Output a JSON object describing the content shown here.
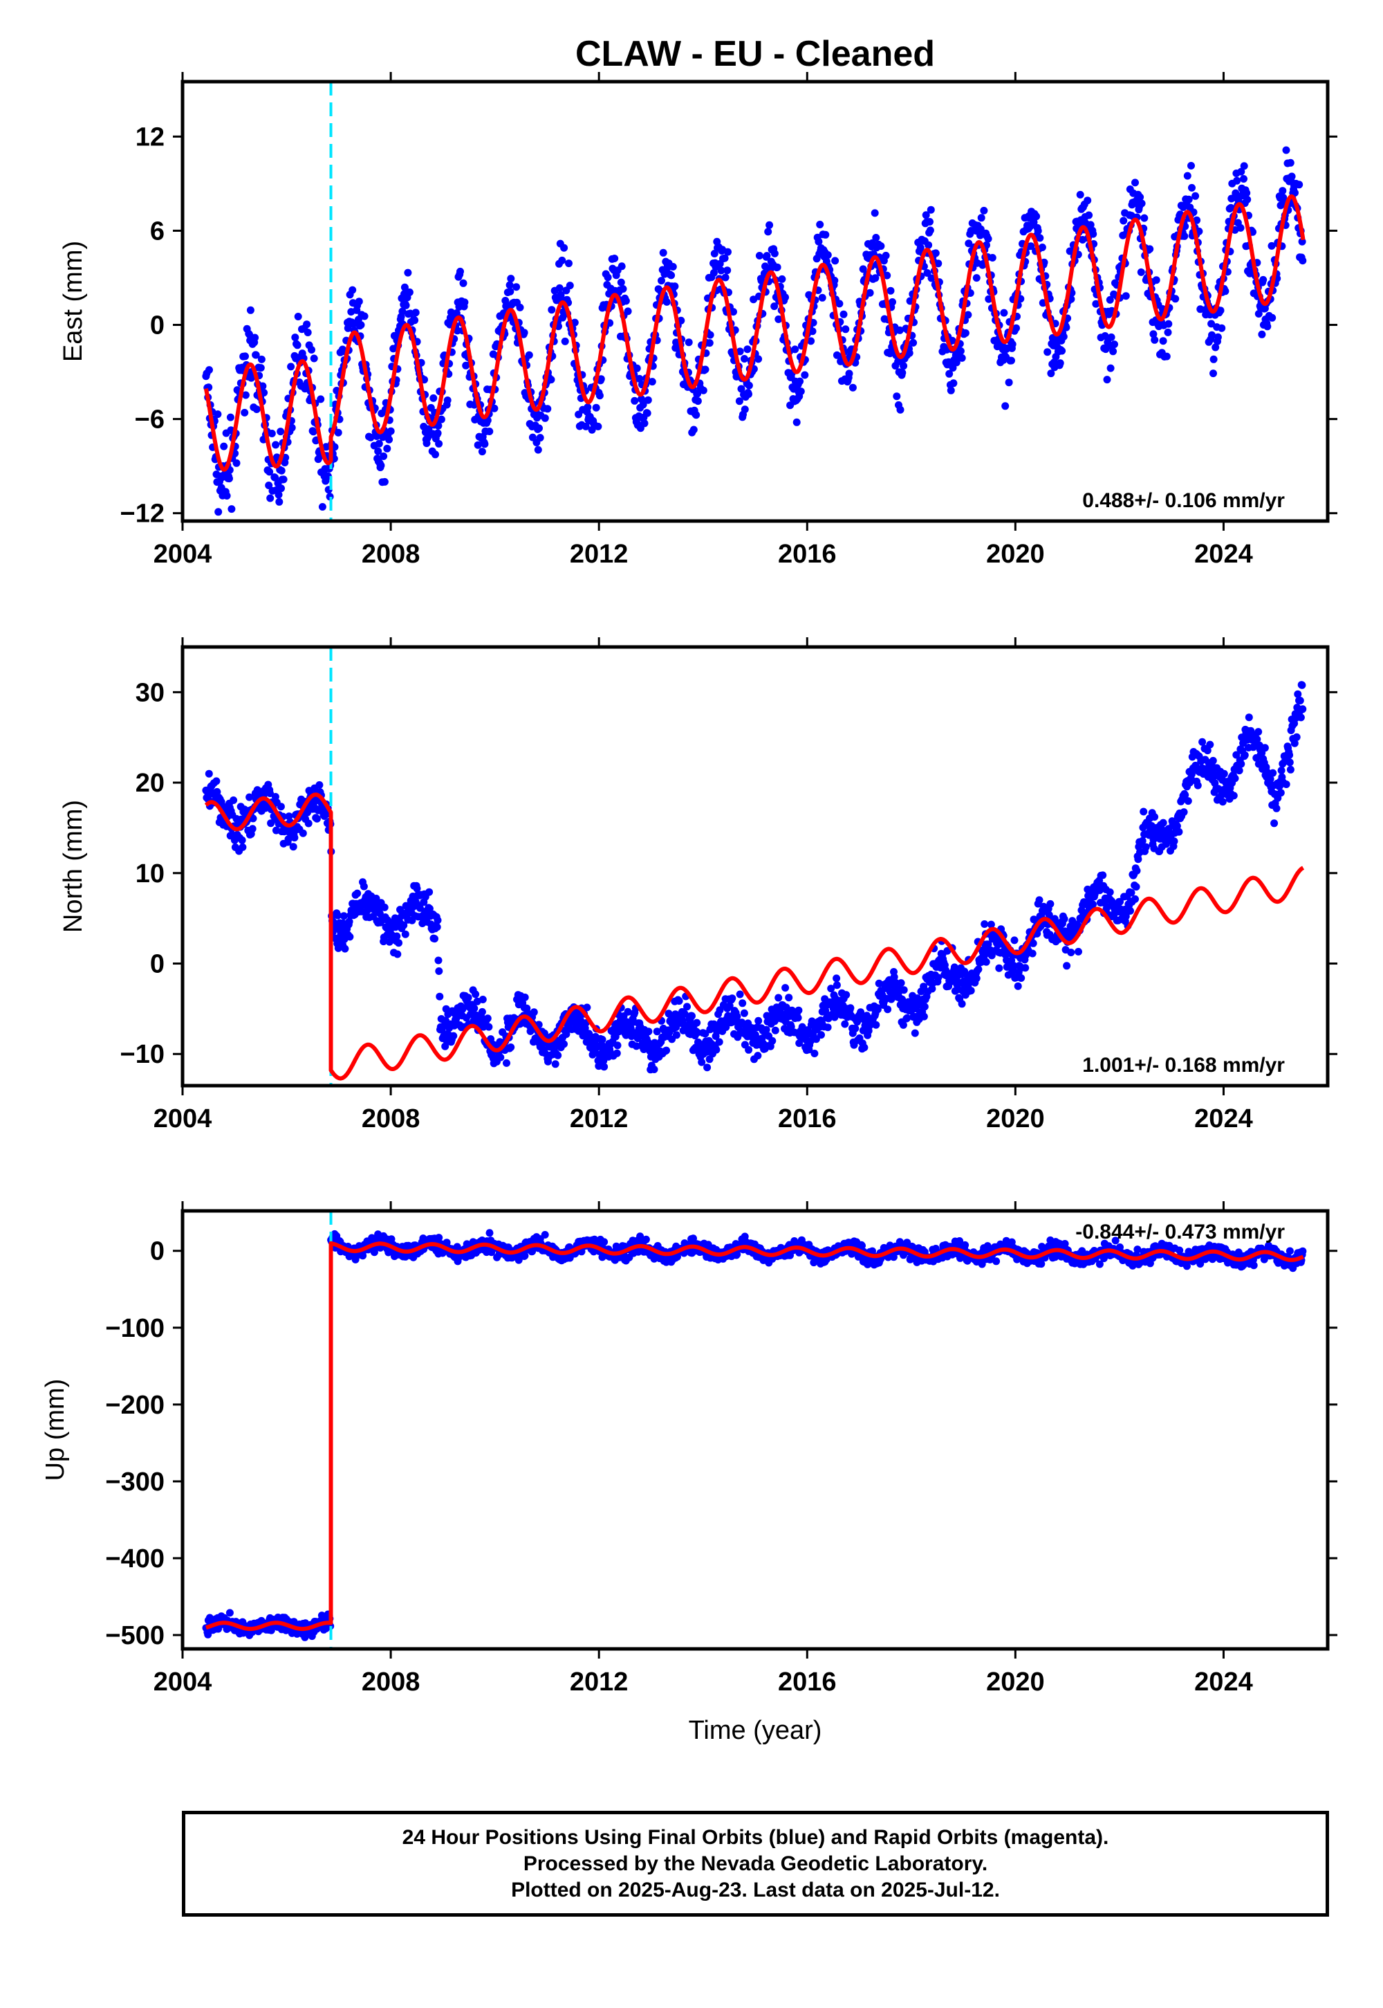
{
  "title": "CLAW  - EU - Cleaned",
  "footer": {
    "line1": "24 Hour Positions Using Final Orbits (blue) and Rapid Orbits (magenta).",
    "line2": "Processed by the Nevada Geodetic Laboratory.",
    "line3": "Plotted on 2025-Aug-23. Last data on 2025-Jul-12."
  },
  "colors": {
    "data": "#0000ff",
    "model": "#ff0000",
    "offset_line": "#00e5ff",
    "frame": "#000000"
  },
  "chart_data": [
    {
      "type": "scatter",
      "panel": "east",
      "ylabel": "East (mm)",
      "xlabel": "",
      "xlim": [
        2004.0,
        2026.0
      ],
      "ylim": [
        -12.5,
        15.5
      ],
      "x_ticks": [
        2004,
        2008,
        2012,
        2016,
        2020,
        2024
      ],
      "y_ticks": [
        -12,
        -6,
        0,
        6,
        12
      ],
      "y_tick_labels": [
        "−12",
        "−6",
        "0",
        "6",
        "12"
      ],
      "rate_label": "0.488+/- 0.106 mm/yr",
      "offset_epoch": 2006.85,
      "data_range": [
        2004.45,
        2025.53
      ],
      "model": {
        "segments": [
          {
            "t0": 2004.45,
            "t1": 2006.85,
            "base": [
              [
                2004.45,
                -6.0
              ],
              [
                2006.85,
                -5.5
              ]
            ],
            "amp": 3.3,
            "phase": 0.05
          },
          {
            "t0": 2006.85,
            "t1": 2025.53,
            "base": [
              [
                2006.85,
                -4.0
              ],
              [
                2022.5,
                3.5
              ],
              [
                2025.53,
                5.0
              ]
            ],
            "amp": 3.3,
            "phase": 0.05
          }
        ]
      },
      "scatter": {
        "noise": 1.2,
        "amp_scale": 1.25,
        "n": 1800
      }
    },
    {
      "type": "scatter",
      "panel": "north",
      "ylabel": "North (mm)",
      "xlabel": "",
      "xlim": [
        2004.0,
        2026.0
      ],
      "ylim": [
        -13.5,
        35.0
      ],
      "x_ticks": [
        2004,
        2008,
        2012,
        2016,
        2020,
        2024
      ],
      "y_ticks": [
        -10,
        0,
        10,
        20,
        30
      ],
      "y_tick_labels": [
        "−10",
        "0",
        "10",
        "20",
        "30"
      ],
      "rate_label": "1.001+/- 0.168 mm/yr",
      "offset_epoch": 2006.85,
      "data_range": [
        2004.45,
        2025.53
      ],
      "model": {
        "segments": [
          {
            "t0": 2004.45,
            "t1": 2006.85,
            "base": [
              [
                2004.45,
                16.2
              ],
              [
                2006.85,
                17.2
              ]
            ],
            "amp": 1.6,
            "phase": 0.3
          },
          {
            "t0": 2006.85,
            "t1": 2025.53,
            "base": [
              [
                2006.85,
                -11.3
              ],
              [
                2011.0,
                -7.0
              ],
              [
                2016.0,
                -1.7
              ],
              [
                2020.0,
                2.7
              ],
              [
                2022.5,
                5.5
              ],
              [
                2025.53,
                9.0
              ]
            ],
            "amp": 1.6,
            "phase": 0.3
          }
        ]
      },
      "scatter_base": [
        [
          2004.45,
          16.8
        ],
        [
          2006.85,
          16.2
        ],
        [
          2006.86,
          5.5
        ],
        [
          2008.9,
          5.0
        ],
        [
          2008.95,
          -5.0
        ],
        [
          2010.0,
          -7.5
        ],
        [
          2013.0,
          -8.0
        ],
        [
          2016.0,
          -6.5
        ],
        [
          2017.2,
          -5.5
        ],
        [
          2018.0,
          -3.5
        ],
        [
          2019.3,
          0.0
        ],
        [
          2020.5,
          3.0
        ],
        [
          2021.5,
          6.0
        ],
        [
          2022.2,
          8.0
        ],
        [
          2022.4,
          12.5
        ],
        [
          2023.0,
          15.0
        ],
        [
          2023.3,
          20.0
        ],
        [
          2024.0,
          21.0
        ],
        [
          2024.5,
          24.0
        ],
        [
          2025.0,
          20.0
        ],
        [
          2025.53,
          28.0
        ]
      ],
      "scatter": {
        "noise": 1.1,
        "amp_scale": 1.1,
        "n": 1800
      }
    },
    {
      "type": "scatter",
      "panel": "up",
      "ylabel": "Up (mm)",
      "xlabel": "Time (year)",
      "xlim": [
        2004.0,
        2026.0
      ],
      "ylim": [
        -518.0,
        52.0
      ],
      "x_ticks": [
        2004,
        2008,
        2012,
        2016,
        2020,
        2024
      ],
      "y_ticks": [
        -500,
        -400,
        -300,
        -200,
        -100,
        0
      ],
      "y_tick_labels": [
        "−500",
        "−400",
        "−300",
        "−200",
        "−100",
        "0"
      ],
      "rate_label": "-0.844+/- 0.473 mm/yr",
      "offset_epoch": 2006.85,
      "data_range": [
        2004.45,
        2025.53
      ],
      "model": {
        "segments": [
          {
            "t0": 2004.45,
            "t1": 2006.85,
            "base": [
              [
                2004.45,
                -488.0
              ],
              [
                2006.85,
                -488.0
              ]
            ],
            "amp": 4.0,
            "phase": 0.55
          },
          {
            "t0": 2006.85,
            "t1": 2025.53,
            "base": [
              [
                2006.85,
                5.0
              ],
              [
                2025.53,
                -7.0
              ]
            ],
            "amp": 5.0,
            "phase": 0.55
          }
        ]
      },
      "scatter": {
        "noise": 5.0,
        "amp_scale": 1.3,
        "n": 1800
      }
    }
  ]
}
